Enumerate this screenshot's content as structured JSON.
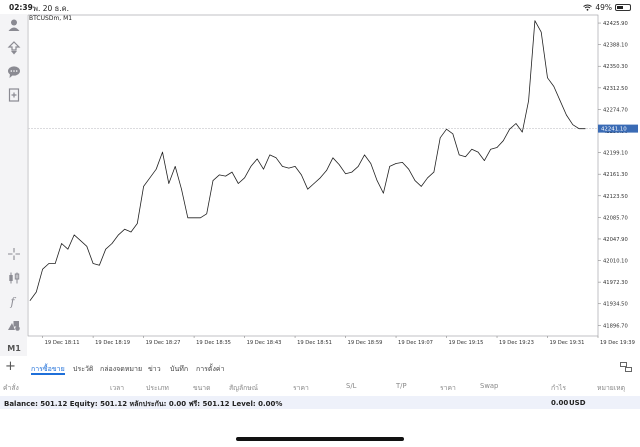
{
  "status_bar": {
    "time": "02:39",
    "date": "พ. 20 ธ.ค.",
    "battery": "49%",
    "battery_level": 0.49
  },
  "toolbar": {
    "icons": [
      "account-icon",
      "trade-icon",
      "chat-icon",
      "new-order-icon",
      "crosshair-icon",
      "candles-icon",
      "indicators-icon",
      "objects-icon"
    ],
    "timeframe": "M1"
  },
  "chart": {
    "symbol": "BTCUSDm, M1",
    "current_price": "42241.10",
    "colors": {
      "line": "#222222",
      "grid": "#cfcfd4",
      "price_tag": "#3a6bb5"
    }
  },
  "chart_data": {
    "type": "line",
    "title": "BTCUSDm, M1",
    "x_ticks": [
      "19 Dec 18:11",
      "19 Dec 18:19",
      "19 Dec 18:27",
      "19 Dec 18:35",
      "19 Dec 18:43",
      "19 Dec 18:51",
      "19 Dec 18:59",
      "19 Dec 19:07",
      "19 Dec 19:15",
      "19 Dec 19:23",
      "19 Dec 19:31",
      "19 Dec 19:39"
    ],
    "y_ticks": [
      "42425.90",
      "42388.10",
      "42350.30",
      "42312.50",
      "42274.70",
      "42236.90",
      "42199.10",
      "42161.30",
      "42123.50",
      "42085.70",
      "42047.90",
      "42010.10",
      "41972.30",
      "41934.50",
      "41896.70"
    ],
    "ylim": [
      41878,
      42440
    ],
    "current_price_line": 42241.1,
    "x": [
      "18:09",
      "18:10",
      "18:11",
      "18:12",
      "18:13",
      "18:14",
      "18:15",
      "18:16",
      "18:17",
      "18:18",
      "18:19",
      "18:20",
      "18:21",
      "18:22",
      "18:23",
      "18:24",
      "18:25",
      "18:26",
      "18:27",
      "18:28",
      "18:29",
      "18:30",
      "18:31",
      "18:32",
      "18:33",
      "18:34",
      "18:35",
      "18:36",
      "18:37",
      "18:38",
      "18:39",
      "18:40",
      "18:41",
      "18:42",
      "18:43",
      "18:44",
      "18:45",
      "18:46",
      "18:47",
      "18:48",
      "18:49",
      "18:50",
      "18:51",
      "18:52",
      "18:53",
      "18:54",
      "18:55",
      "18:56",
      "18:57",
      "18:58",
      "18:59",
      "19:00",
      "19:01",
      "19:02",
      "19:03",
      "19:04",
      "19:05",
      "19:06",
      "19:07",
      "19:08",
      "19:09",
      "19:10",
      "19:11",
      "19:12",
      "19:13",
      "19:14",
      "19:15",
      "19:16",
      "19:17",
      "19:18",
      "19:19",
      "19:20",
      "19:21",
      "19:22",
      "19:23",
      "19:24",
      "19:25",
      "19:26",
      "19:27",
      "19:28",
      "19:29",
      "19:30",
      "19:31",
      "19:32",
      "19:33",
      "19:34",
      "19:35",
      "19:36",
      "19:37"
    ],
    "values": [
      41940,
      41955,
      41995,
      42005,
      42005,
      42040,
      42030,
      42055,
      42045,
      42035,
      42005,
      42002,
      42030,
      42040,
      42055,
      42065,
      42060,
      42075,
      42140,
      42155,
      42170,
      42200,
      42145,
      42175,
      42135,
      42085,
      42085,
      42085,
      42092,
      42150,
      42160,
      42158,
      42165,
      42145,
      42155,
      42175,
      42188,
      42170,
      42195,
      42190,
      42175,
      42172,
      42175,
      42160,
      42135,
      42145,
      42155,
      42168,
      42190,
      42178,
      42162,
      42165,
      42175,
      42195,
      42180,
      42150,
      42128,
      42175,
      42180,
      42182,
      42170,
      42150,
      42140,
      42155,
      42165,
      42225,
      42240,
      42232,
      42195,
      42192,
      42205,
      42200,
      42185,
      42205,
      42208,
      42220,
      42240,
      42250,
      42235,
      42290,
      42430,
      42410,
      42330,
      42315,
      42290,
      42265,
      42248,
      42241,
      42241
    ]
  },
  "tabs": {
    "items": [
      "การซื้อขาย",
      "ประวัติ",
      "กล่องจดหมาย",
      "ข่าว",
      "บันทึก",
      "การตั้งค่า"
    ]
  },
  "table_header": {
    "columns": [
      "คำสั่ง",
      "เวลา",
      "ประเภท",
      "ขนาด",
      "สัญลักษณ์",
      "ราคา",
      "S/L",
      "T/P",
      "ราคา",
      "Swap",
      "กำไร",
      "หมายเหตุ"
    ]
  },
  "balance_row": {
    "summary": "Balance: 501.12 Equity: 501.12 หลักประกัน: 0.00 ฟรี: 501.12 Level: 0.00%",
    "profit": "0.00",
    "currency": "USD"
  }
}
